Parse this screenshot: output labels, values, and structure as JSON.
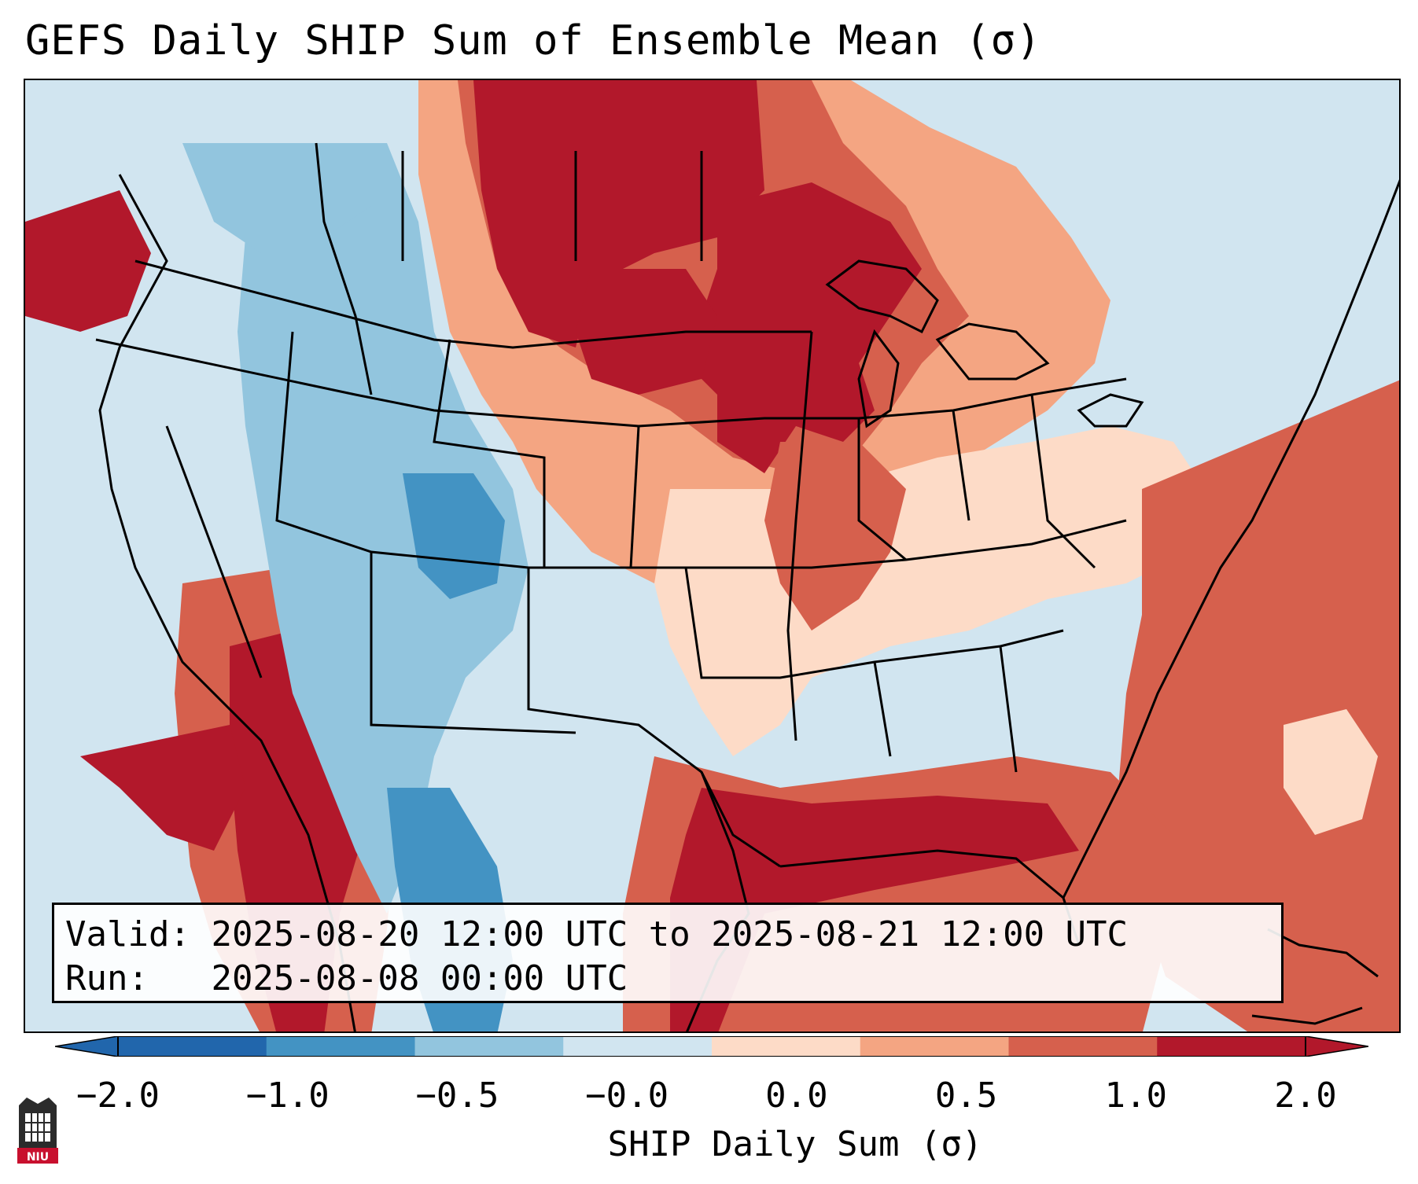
{
  "title": "GEFS Daily SHIP Sum of Ensemble Mean (σ)",
  "info": {
    "valid_label": "Valid:",
    "valid_value": "2025-08-20 12:00 UTC to 2025-08-21 12:00 UTC",
    "run_label": "Run:",
    "run_value": "2025-08-08 00:00 UTC"
  },
  "colorbar": {
    "label": "SHIP Daily Sum (σ)",
    "ticks": [
      "−2.0",
      "−1.0",
      "−0.5",
      "−0.0",
      "0.0",
      "0.5",
      "1.0",
      "2.0"
    ],
    "colors": [
      "#2166ac",
      "#4393c3",
      "#92c5de",
      "#d1e5f0",
      "#fddbc7",
      "#f4a582",
      "#d6604d",
      "#b2182b"
    ]
  },
  "logo": {
    "icon": "niu-logo-icon",
    "text": "NIU"
  },
  "colors": {
    "neg_2": "#2166ac",
    "neg_1": "#4393c3",
    "neg_05": "#92c5de",
    "neg_0": "#d1e5f0",
    "pos_0": "#fddbc7",
    "pos_05": "#f4a582",
    "pos_1": "#d6604d",
    "pos_2": "#b2182b"
  }
}
